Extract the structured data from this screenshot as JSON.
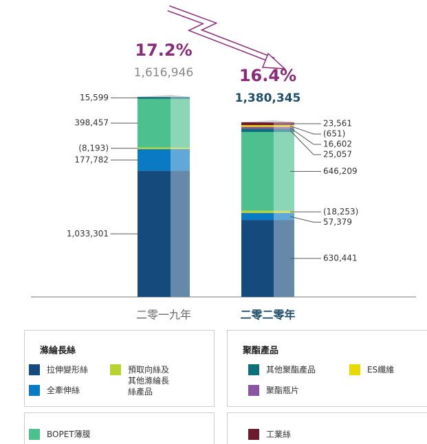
{
  "chart_data": {
    "type": "stacked_bar",
    "categories": [
      "二零一九年",
      "二零二零年"
    ],
    "legend_titles": [
      "滌綸長絲",
      "聚酯產品"
    ],
    "series": [
      {
        "name": "拉伸變形絲",
        "color": "#144a7c",
        "values": [
          1033301,
          630441
        ],
        "value_labels": [
          "1,033,301",
          "630,441"
        ]
      },
      {
        "name": "全牽伸絲",
        "color": "#0a7ac4",
        "values": [
          177782,
          57379
        ],
        "value_labels": [
          "177,782",
          "57,379"
        ]
      },
      {
        "name": "預取向絲及其他滌綸長絲產品",
        "color": "#b8d22f",
        "values": [
          -8193,
          -18253
        ],
        "value_labels": [
          "(8,193)",
          "(18,253)"
        ]
      },
      {
        "name": "BOPET薄膜",
        "color": "#4cc08f",
        "values": [
          398457,
          646209
        ],
        "value_labels": [
          "398,457",
          "646,209"
        ]
      },
      {
        "name": "其他聚酯產品",
        "color": "#0b6f7c",
        "values": [
          15599,
          25057
        ],
        "value_labels": [
          "15,599",
          "25,057"
        ]
      },
      {
        "name": "聚酯瓶片",
        "color": "#8e54a4",
        "values": [
          null,
          16602
        ],
        "value_labels": [
          null,
          "16,602"
        ]
      },
      {
        "name": "ES纖維",
        "color": "#e8d900",
        "values": [
          null,
          -651
        ],
        "value_labels": [
          null,
          "(651)"
        ]
      },
      {
        "name": "工業絲",
        "color": "#6e1a2e",
        "values": [
          null,
          23561
        ],
        "value_labels": [
          null,
          "23,561"
        ]
      }
    ],
    "totals": {
      "values": [
        1616946,
        1380345
      ],
      "value_labels": [
        "1,616,946",
        "1,380,345"
      ]
    },
    "margins": {
      "values": [
        17.2,
        16.4
      ],
      "value_labels": [
        "17.2%",
        "16.4%"
      ]
    }
  }
}
